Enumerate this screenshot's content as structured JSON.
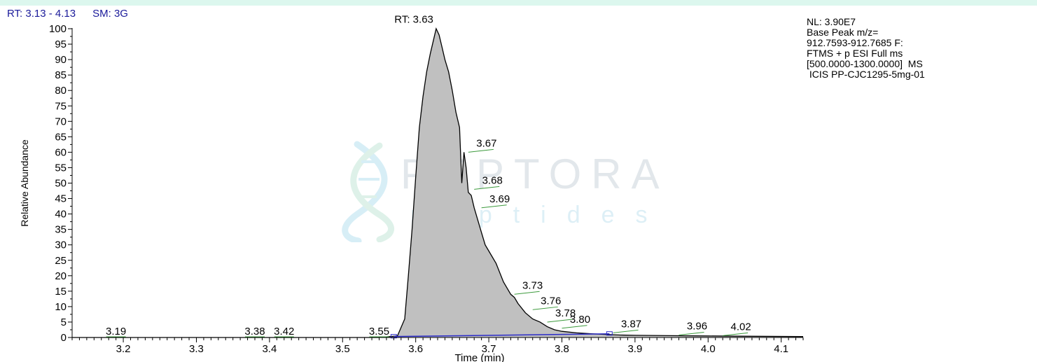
{
  "header": {
    "rt_range": "RT: 3.13 - 4.13",
    "smoothing": "SM: 3G"
  },
  "info_block": [
    "NL: 3.90E7",
    "Base Peak m/z=",
    "912.7593-912.7685 F:",
    "FTMS + p ESI Full ms",
    "[500.0000-1300.0000]  MS",
    " ICIS PP-CJC1295-5mg-01"
  ],
  "watermark": {
    "word": "PEPTORA",
    "sub": "peptides"
  },
  "colors": {
    "header_text": "#1a1a9a",
    "peak_fill": "#c0c0c0",
    "trace": "#000000",
    "baseline": "#2b2bc8",
    "label_leader": "#3c9a3c",
    "band": "#dcf7ee"
  },
  "chart_data": {
    "type": "area",
    "xlabel": "Time (min)",
    "ylabel": "Relative Abundance",
    "xlim": [
      3.13,
      4.13
    ],
    "ylim": [
      0,
      100
    ],
    "x_ticks": [
      3.2,
      3.3,
      3.4,
      3.5,
      3.6,
      3.7,
      3.8,
      3.9,
      4.0,
      4.1
    ],
    "x_tick_labels": [
      "3.2",
      "3.3",
      "3.4",
      "3.5",
      "3.6",
      "3.7",
      "3.8",
      "3.9",
      "4.0",
      "4.1"
    ],
    "y_ticks": [
      0,
      5,
      10,
      15,
      20,
      25,
      30,
      35,
      40,
      45,
      50,
      55,
      60,
      65,
      70,
      75,
      80,
      85,
      90,
      95,
      100
    ],
    "y_tick_labels": [
      "0",
      "5",
      "10",
      "15",
      "20",
      "25",
      "30",
      "35",
      "40",
      "45",
      "50",
      "55",
      "60",
      "65",
      "70",
      "75",
      "80",
      "85",
      "90",
      "95",
      "100"
    ],
    "grid": false,
    "series": [
      {
        "x": [
          3.13,
          3.55,
          3.575,
          3.585,
          3.59,
          3.595,
          3.6,
          3.605,
          3.61,
          3.615,
          3.62,
          3.625,
          3.628,
          3.632,
          3.636,
          3.64,
          3.645,
          3.65,
          3.655,
          3.66,
          3.663,
          3.666,
          3.669,
          3.672,
          3.676,
          3.68,
          3.685,
          3.69,
          3.695,
          3.7,
          3.71,
          3.72,
          3.73,
          3.735,
          3.74,
          3.75,
          3.76,
          3.77,
          3.78,
          3.79,
          3.8,
          3.82,
          3.84,
          3.86,
          3.88,
          3.9,
          3.95,
          4.0,
          4.05,
          4.13
        ],
        "y": [
          0,
          0,
          0.5,
          6,
          20,
          35,
          52,
          68,
          78,
          86,
          92,
          97,
          100,
          98,
          94,
          90,
          86,
          80,
          73,
          68,
          50,
          60,
          55,
          47,
          46,
          42,
          38,
          34,
          30,
          28,
          24,
          18,
          14,
          13,
          11,
          8,
          6,
          5,
          3.5,
          2.5,
          2,
          1.5,
          1.2,
          1,
          0.8,
          0.7,
          0.6,
          0.5,
          0.4,
          0.3
        ]
      }
    ],
    "baseline": {
      "x": [
        3.57,
        3.865
      ],
      "y": [
        0.3,
        1.2
      ]
    },
    "peak_labels": [
      {
        "text": "RT: 3.63",
        "x": 3.632,
        "y": 101
      },
      {
        "text": "3.19",
        "x": 3.19,
        "y": 0
      },
      {
        "text": "3.38",
        "x": 3.38,
        "y": 0
      },
      {
        "text": "3.42",
        "x": 3.42,
        "y": 0
      },
      {
        "text": "3.55",
        "x": 3.55,
        "y": 0
      },
      {
        "text": "3.67",
        "x": 3.672,
        "y": 60
      },
      {
        "text": "3.68",
        "x": 3.68,
        "y": 48
      },
      {
        "text": "3.69",
        "x": 3.69,
        "y": 42
      },
      {
        "text": "3.73",
        "x": 3.735,
        "y": 14
      },
      {
        "text": "3.76",
        "x": 3.76,
        "y": 9
      },
      {
        "text": "3.78",
        "x": 3.78,
        "y": 5
      },
      {
        "text": "3.80",
        "x": 3.8,
        "y": 3
      },
      {
        "text": "3.87",
        "x": 3.87,
        "y": 1.5
      },
      {
        "text": "3.96",
        "x": 3.96,
        "y": 0.8
      },
      {
        "text": "4.02",
        "x": 4.02,
        "y": 0.6
      }
    ]
  }
}
